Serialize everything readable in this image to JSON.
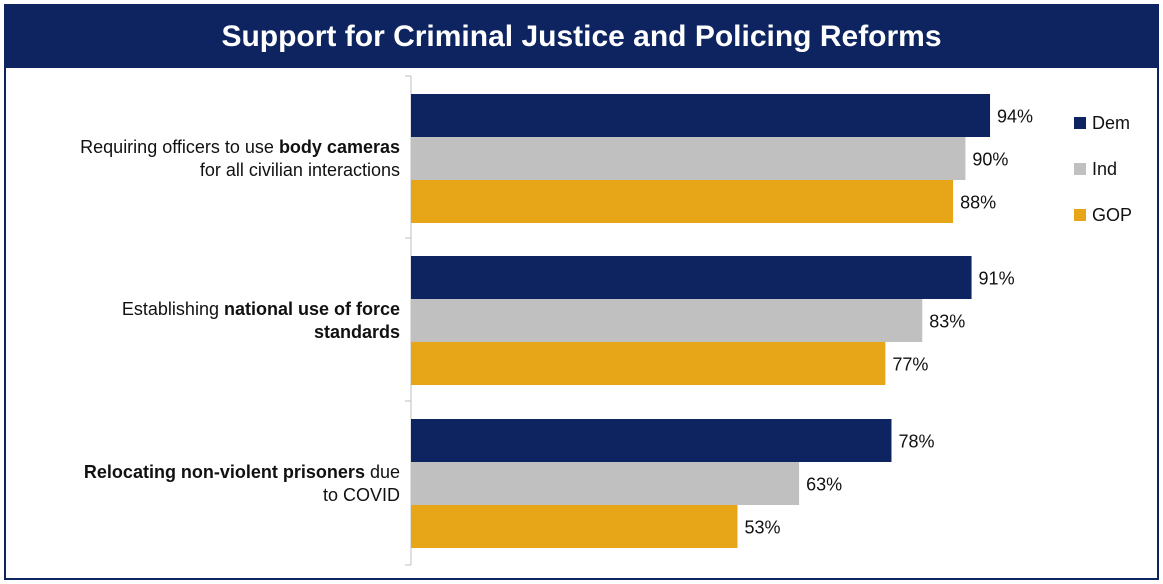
{
  "chart_data": {
    "type": "bar",
    "orientation": "horizontal",
    "title": "Support for Criminal Justice and Policing Reforms",
    "categories": [
      {
        "parts": [
          {
            "text": "Requiring officers to use ",
            "bold": false
          },
          {
            "text": "body cameras",
            "bold": true
          },
          {
            "text": "",
            "bold": false
          }
        ],
        "line2": "for all civilian interactions"
      },
      {
        "parts": [
          {
            "text": "Establishing ",
            "bold": false
          },
          {
            "text": "national use of force",
            "bold": true
          },
          {
            "text": "",
            "bold": false
          }
        ],
        "line2": "standards",
        "line2_bold": true
      },
      {
        "parts": [
          {
            "text": "",
            "bold": false
          },
          {
            "text": "Relocating non-violent prisoners",
            "bold": true
          },
          {
            "text": " due",
            "bold": false
          }
        ],
        "line2": "to COVID"
      }
    ],
    "series": [
      {
        "name": "Dem",
        "color": "#0d2461",
        "values": [
          94,
          91,
          78
        ]
      },
      {
        "name": "Ind",
        "color": "#c0c0c0",
        "values": [
          90,
          83,
          63
        ]
      },
      {
        "name": "GOP",
        "color": "#e6a617",
        "values": [
          88,
          77,
          53
        ]
      }
    ],
    "value_suffix": "%",
    "xlim": [
      0,
      100
    ],
    "grid": false,
    "legend_position": "right"
  }
}
